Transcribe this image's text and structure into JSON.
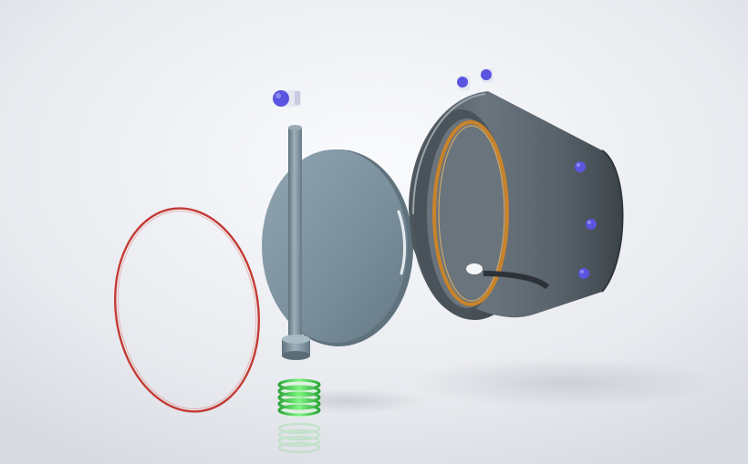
{
  "scene": {
    "description_name": "exploded-valve-assembly",
    "colors": {
      "background_light": "#f7f8fb",
      "background_dark": "#d8dbe2",
      "disc": "#7d93a0",
      "disc_edge": "#5f727d",
      "stem": "#7f949f",
      "band_outer": "#5e6870",
      "band_inner": "#3f474e",
      "gasket": "#c9832a",
      "o_ring": "#c43a34",
      "spring": "#3fd34a",
      "fastener": "#5a55e0"
    }
  }
}
